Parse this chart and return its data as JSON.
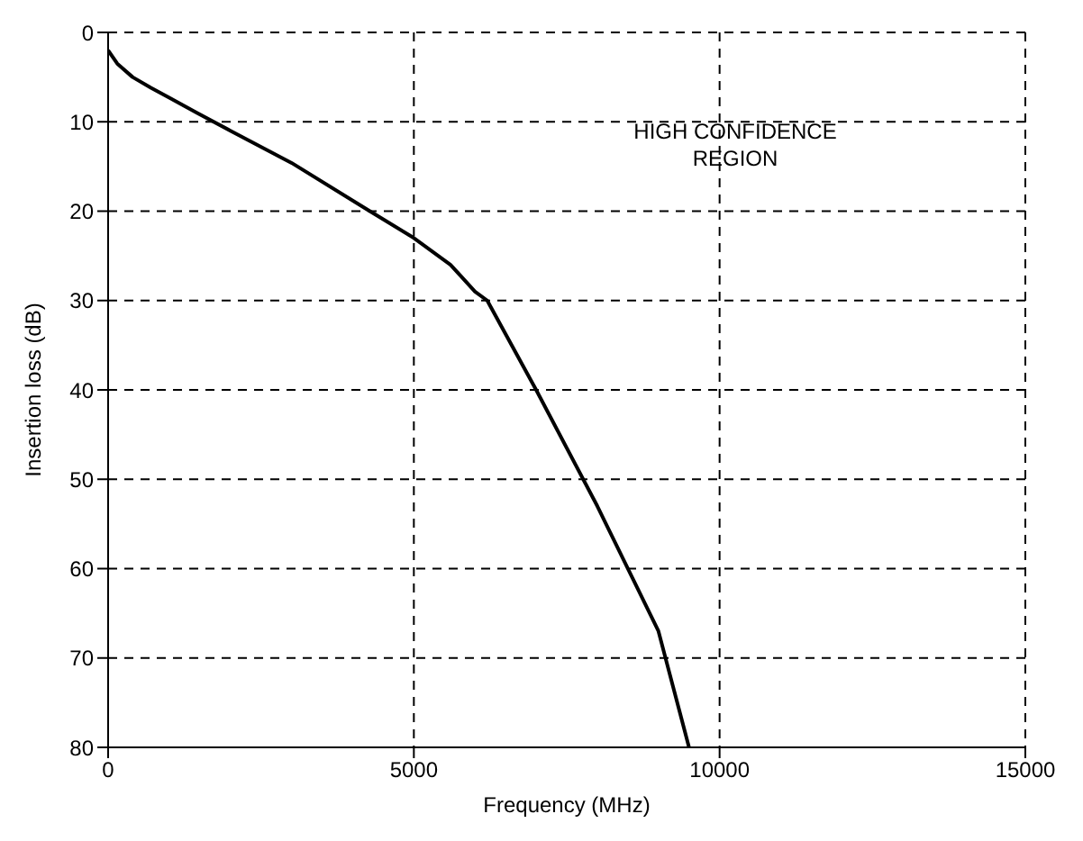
{
  "chart_data": {
    "type": "line",
    "xlabel": "Frequency (MHz)",
    "ylabel": "Insertion loss (dB)",
    "x": [
      0,
      150,
      400,
      700,
      1000,
      1450,
      2000,
      3000,
      4280,
      5000,
      5600,
      6000,
      6200,
      7000,
      8000,
      9000,
      9500
    ],
    "values": [
      2,
      3.5,
      5,
      6.2,
      7.3,
      9,
      11,
      14.6,
      20,
      23,
      26,
      29,
      30,
      40,
      53,
      67,
      80
    ],
    "color": "#000000",
    "xlim": [
      0,
      15000
    ],
    "xticks": [
      0,
      5000,
      10000,
      15000
    ],
    "ylim": [
      80,
      0
    ],
    "yticks": [
      0,
      10,
      20,
      30,
      40,
      50,
      60,
      70,
      80
    ],
    "grid": true,
    "line_style": "solid",
    "marker": "none",
    "annotations": [
      "HIGH CONFIDENCE\nREGION"
    ]
  }
}
